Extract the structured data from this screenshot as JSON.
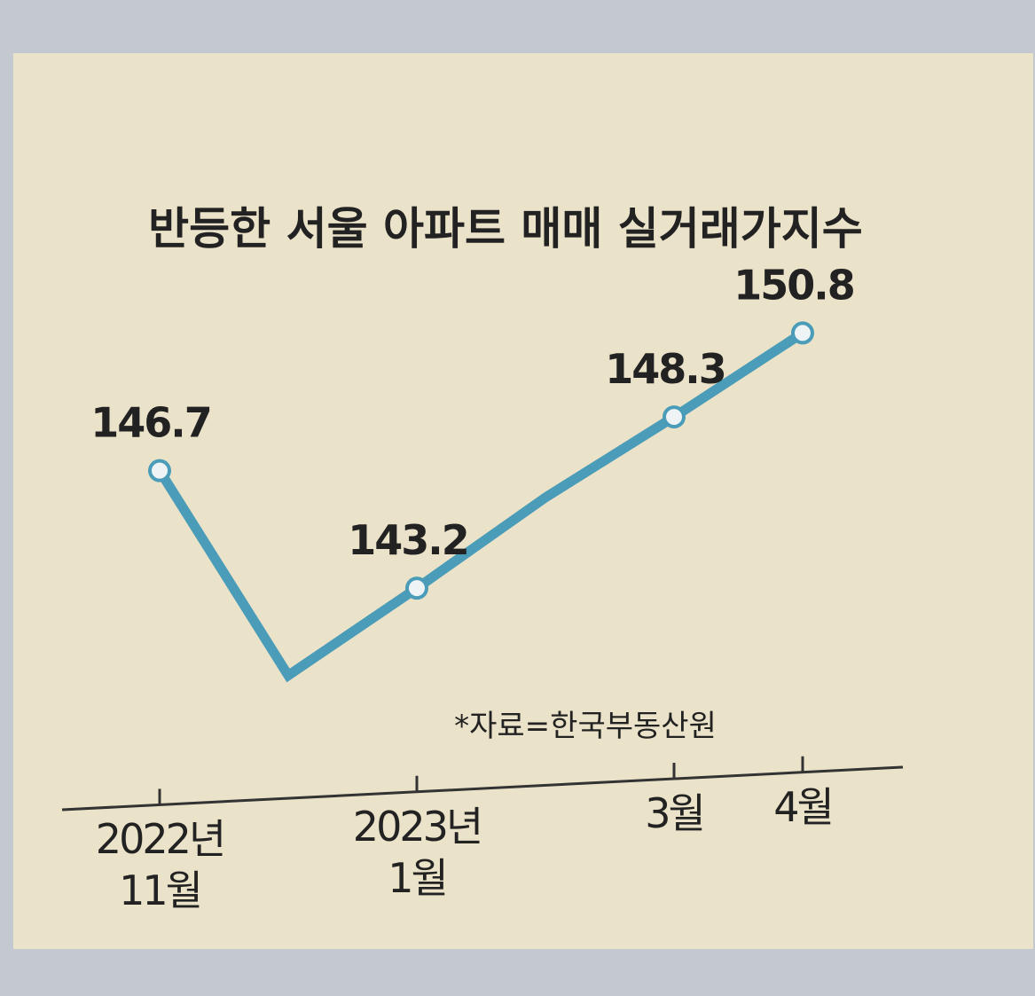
{
  "chart_data": {
    "type": "line",
    "title": "반등한 서울 아파트 매매 실거래가지수",
    "source": "*자료=한국부동산원",
    "categories": [
      "2022년\n11월",
      null,
      "2023년\n1월",
      null,
      "3월",
      "4월"
    ],
    "values": [
      146.7,
      140.6,
      143.2,
      145.9,
      148.3,
      150.8
    ],
    "value_labels": [
      "146.7",
      null,
      "143.2",
      null,
      "148.3",
      "150.8"
    ],
    "color": "#4a9cb8",
    "ylim": [
      138,
      152
    ]
  }
}
